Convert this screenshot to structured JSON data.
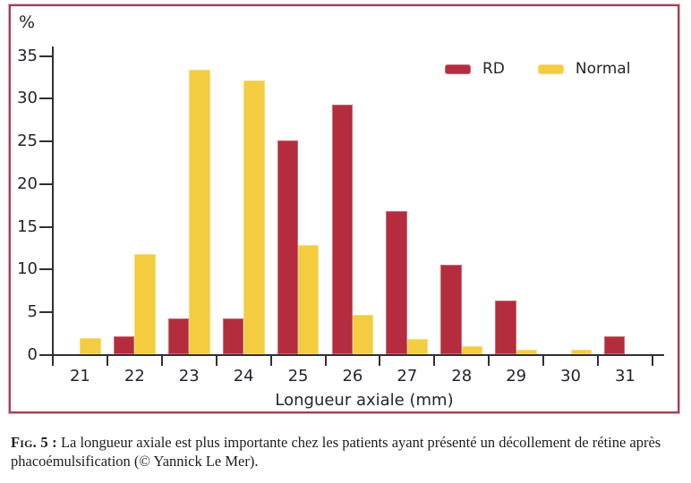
{
  "figure": {
    "caption_label": "Fig. 5 :",
    "caption_text": " La longueur axiale est plus importante chez les patients ayant présenté un décollement de rétine après phacoémulsification (© Yannick Le Mer)."
  },
  "colors": {
    "rd_red": "#b42c3e",
    "normal_yellow": "#f3cd3f",
    "frame_maroon": "#a23f58",
    "axis": "#2f2f35"
  },
  "chart_data": {
    "type": "bar",
    "title": "",
    "xlabel": "Longueur axiale (mm)",
    "ylabel": "%",
    "categories": [
      "21",
      "22",
      "23",
      "24",
      "25",
      "26",
      "27",
      "28",
      "29",
      "30",
      "31"
    ],
    "series": [
      {
        "name": "RD",
        "color": "#b42c3e",
        "values": [
          0,
          2.1,
          4.2,
          4.2,
          25,
          29.2,
          16.7,
          10.5,
          6.3,
          0,
          2.1
        ]
      },
      {
        "name": "Normal",
        "color": "#f3cd3f",
        "values": [
          1.9,
          11.7,
          33.3,
          32,
          12.8,
          4.6,
          1.8,
          0.9,
          0.5,
          0.5,
          0
        ]
      }
    ],
    "ylim": [
      0,
      35
    ],
    "yticks": [
      0,
      5,
      10,
      15,
      20,
      25,
      30,
      35
    ],
    "grid": false,
    "legend_position": "top-right"
  }
}
